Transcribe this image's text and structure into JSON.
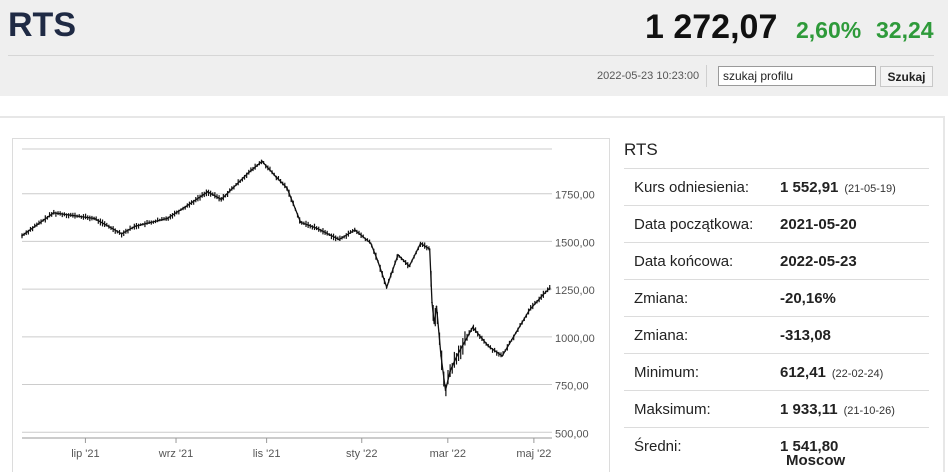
{
  "header": {
    "title": "RTS",
    "price": "1 272,07",
    "change_pct": "2,60%",
    "change_abs": "32,24",
    "timestamp": "2022-05-23 10:23:00",
    "search_value": "szukaj profilu",
    "search_button": "Szukaj"
  },
  "colors": {
    "positive": "#2e9a3a",
    "title": "#1f2a44"
  },
  "info": {
    "title": "RTS",
    "rows": [
      {
        "label": "Kurs odniesienia:",
        "value": "1 552,91",
        "extra": "(21-05-19)"
      },
      {
        "label": "Data początkowa:",
        "value": "2021-05-20",
        "extra": ""
      },
      {
        "label": "Data końcowa:",
        "value": "2022-05-23",
        "extra": ""
      },
      {
        "label": "Zmiana:",
        "value": "-20,16%",
        "extra": ""
      },
      {
        "label": "Zmiana:",
        "value": "-313,08",
        "extra": ""
      },
      {
        "label": "Minimum:",
        "value": "612,41",
        "extra": "(22-02-24)"
      },
      {
        "label": "Maksimum:",
        "value": "1 933,11",
        "extra": "(21-10-26)"
      },
      {
        "label": "Średni:",
        "value": "1 541,80",
        "extra": ""
      }
    ],
    "footer": "Moscow"
  },
  "chart_data": {
    "type": "line",
    "y_ticks": [
      "1750,00",
      "1500,00",
      "1250,00",
      "1000,00",
      "750,00",
      "500,00"
    ],
    "y_tick_values": [
      1750,
      1500,
      1250,
      1000,
      750,
      500
    ],
    "x_ticks": [
      "lip '21",
      "wrz '21",
      "lis '21",
      "sty '22",
      "mar '22",
      "maj '22"
    ],
    "x_tick_positions": [
      1.4,
      3.4,
      5.4,
      7.5,
      9.4,
      11.3
    ],
    "x_range": [
      0,
      11.7
    ],
    "ylim": [
      470,
      2000
    ],
    "grid": true,
    "x": [
      0,
      0.7,
      1.6,
      2.2,
      2.5,
      3.2,
      3.6,
      4.1,
      4.4,
      5.0,
      5.3,
      5.6,
      5.85,
      6.15,
      6.5,
      7.0,
      7.35,
      7.7,
      7.85,
      8.05,
      8.3,
      8.55,
      8.8,
      9.0,
      9.05,
      9.1,
      9.15,
      9.25,
      9.35,
      9.45,
      9.6,
      9.95,
      10.3,
      10.6,
      10.9,
      11.2,
      11.5,
      11.65
    ],
    "values": [
      1530,
      1650,
      1620,
      1540,
      1580,
      1620,
      1680,
      1760,
      1720,
      1860,
      1920,
      1840,
      1780,
      1600,
      1570,
      1510,
      1560,
      1490,
      1400,
      1260,
      1430,
      1370,
      1490,
      1460,
      1180,
      1070,
      1160,
      900,
      720,
      820,
      900,
      1050,
      950,
      900,
      1020,
      1140,
      1220,
      1255
    ]
  }
}
